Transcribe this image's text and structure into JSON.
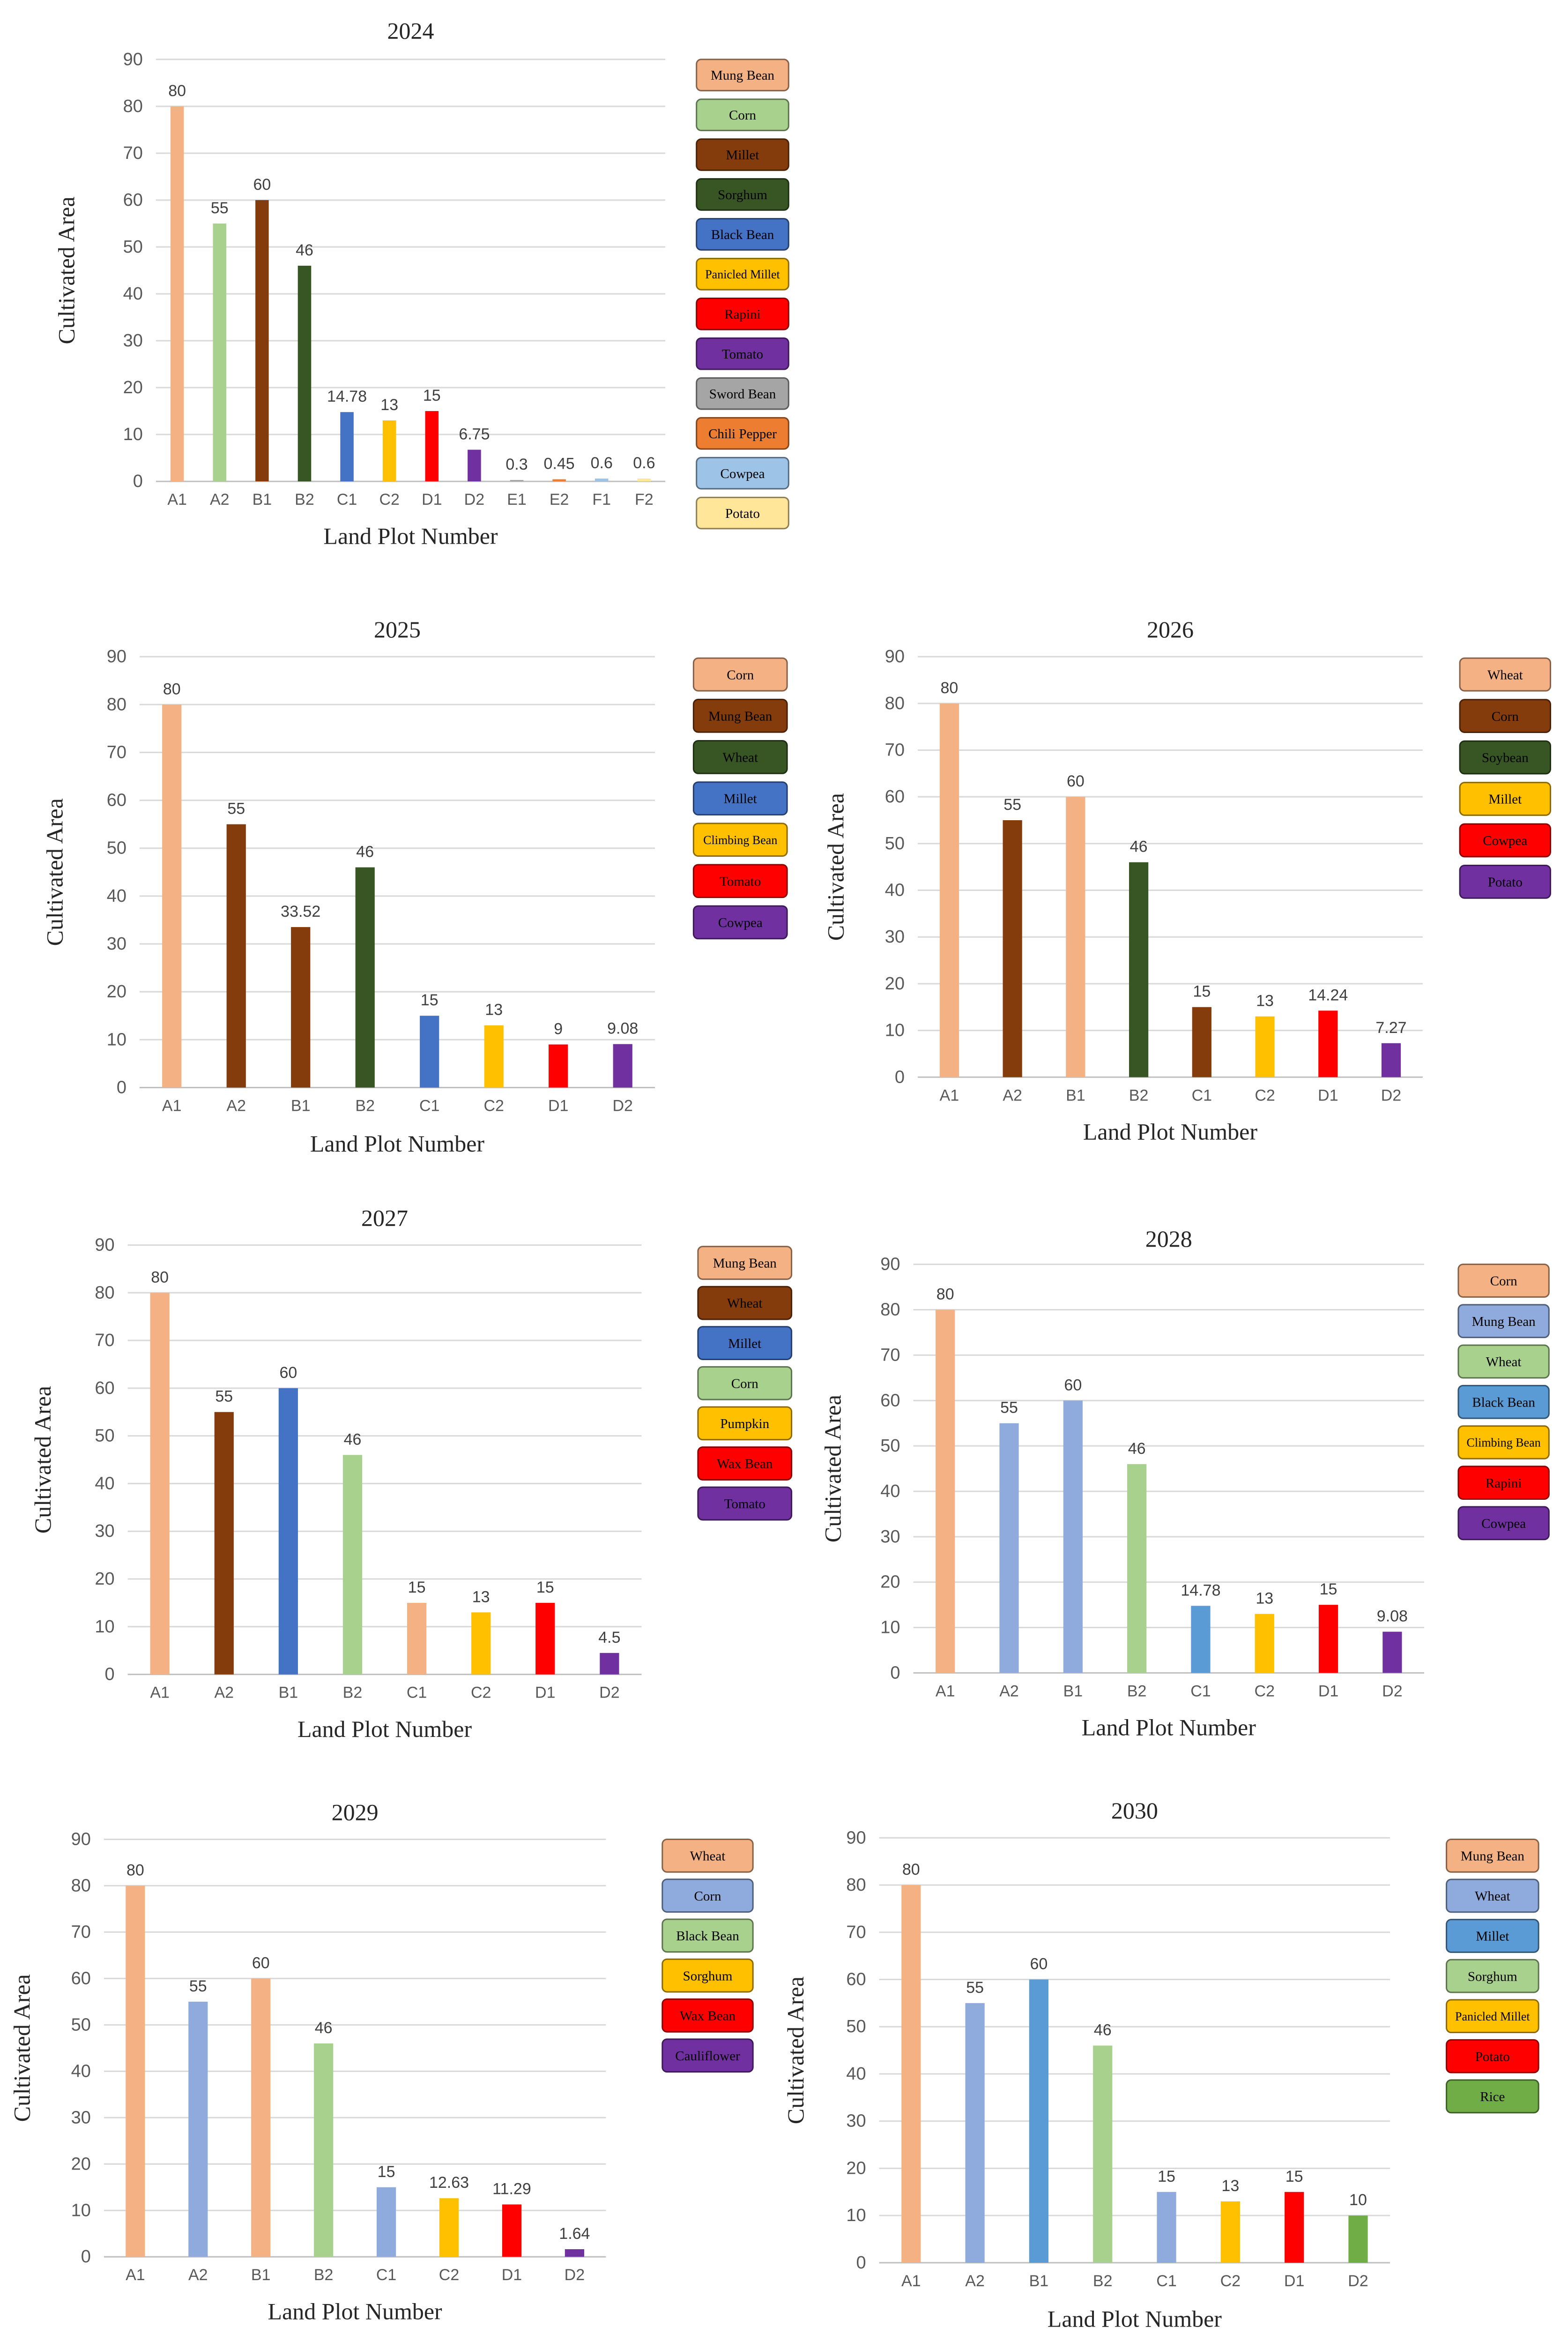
{
  "chart_data": [
    {
      "type": "bar",
      "title": "2024",
      "xlabel": "Land Plot Number",
      "ylabel": "Cultivated Area",
      "ylim": [
        0,
        90
      ],
      "yticks": [
        0,
        10,
        20,
        30,
        40,
        50,
        60,
        70,
        80,
        90
      ],
      "grid": true,
      "legend_position": "right",
      "categories": [
        "A1",
        "A2",
        "B1",
        "B2",
        "C1",
        "C2",
        "D1",
        "D2",
        "E1",
        "E2",
        "F1",
        "F2"
      ],
      "values": [
        80,
        55,
        60,
        46,
        14.78,
        13,
        15,
        6.75,
        0.3,
        0.45,
        0.6,
        0.6
      ],
      "value_labels": [
        "80",
        "55",
        "60",
        "46",
        "14.78",
        "13",
        "15",
        "6.75",
        "0.3",
        "0.45",
        "0.6",
        "0.6"
      ],
      "bar_colors": [
        "#F4B183",
        "#A9D18E",
        "#843C0C",
        "#375623",
        "#4472C4",
        "#FFC000",
        "#FF0000",
        "#7030A0",
        "#A5A5A5",
        "#ED7D31",
        "#9DC3E6",
        "#FFE699"
      ],
      "legend": [
        {
          "label": "Mung Bean",
          "color": "#F4B183"
        },
        {
          "label": "Corn",
          "color": "#A9D18E"
        },
        {
          "label": "Millet",
          "color": "#843C0C"
        },
        {
          "label": "Sorghum",
          "color": "#375623"
        },
        {
          "label": "Black Bean",
          "color": "#4472C4"
        },
        {
          "label": "Panicled Millet",
          "color": "#FFC000"
        },
        {
          "label": "Rapini",
          "color": "#FF0000"
        },
        {
          "label": "Tomato",
          "color": "#7030A0"
        },
        {
          "label": "Sword Bean",
          "color": "#A5A5A5"
        },
        {
          "label": "Chili Pepper",
          "color": "#ED7D31"
        },
        {
          "label": "Cowpea",
          "color": "#9DC3E6"
        },
        {
          "label": "Potato",
          "color": "#FFE699"
        }
      ]
    },
    {
      "type": "bar",
      "title": "2025",
      "xlabel": "Land Plot Number",
      "ylabel": "Cultivated Area",
      "ylim": [
        0,
        90
      ],
      "yticks": [
        0,
        10,
        20,
        30,
        40,
        50,
        60,
        70,
        80,
        90
      ],
      "grid": true,
      "legend_position": "right",
      "categories": [
        "A1",
        "A2",
        "B1",
        "B2",
        "C1",
        "C2",
        "D1",
        "D2"
      ],
      "values": [
        80,
        55,
        33.52,
        46,
        15,
        13,
        9,
        9.08
      ],
      "value_labels": [
        "80",
        "55",
        "33.52",
        "46",
        "15",
        "13",
        "9",
        "9.08"
      ],
      "bar_colors": [
        "#F4B183",
        "#843C0C",
        "#843C0C",
        "#375623",
        "#4472C4",
        "#FFC000",
        "#FF0000",
        "#7030A0"
      ],
      "legend": [
        {
          "label": "Corn",
          "color": "#F4B183"
        },
        {
          "label": "Mung Bean",
          "color": "#843C0C"
        },
        {
          "label": "Wheat",
          "color": "#375623"
        },
        {
          "label": "Millet",
          "color": "#4472C4"
        },
        {
          "label": "Climbing Bean",
          "color": "#FFC000"
        },
        {
          "label": "Tomato",
          "color": "#FF0000"
        },
        {
          "label": "Cowpea",
          "color": "#7030A0"
        }
      ]
    },
    {
      "type": "bar",
      "title": "2026",
      "xlabel": "Land Plot Number",
      "ylabel": "Cultivated Area",
      "ylim": [
        0,
        90
      ],
      "yticks": [
        0,
        10,
        20,
        30,
        40,
        50,
        60,
        70,
        80,
        90
      ],
      "grid": true,
      "legend_position": "right",
      "categories": [
        "A1",
        "A2",
        "B1",
        "B2",
        "C1",
        "C2",
        "D1",
        "D2"
      ],
      "values": [
        80,
        55,
        60,
        46,
        15,
        13,
        14.24,
        7.27
      ],
      "value_labels": [
        "80",
        "55",
        "60",
        "46",
        "15",
        "13",
        "14.24",
        "7.27"
      ],
      "bar_colors": [
        "#F4B183",
        "#843C0C",
        "#F4B183",
        "#375623",
        "#843C0C",
        "#FFC000",
        "#FF0000",
        "#7030A0"
      ],
      "legend": [
        {
          "label": "Wheat",
          "color": "#F4B183"
        },
        {
          "label": "Corn",
          "color": "#843C0C"
        },
        {
          "label": "Soybean",
          "color": "#375623"
        },
        {
          "label": "Millet",
          "color": "#FFC000"
        },
        {
          "label": "Cowpea",
          "color": "#FF0000"
        },
        {
          "label": "Potato",
          "color": "#7030A0"
        }
      ]
    },
    {
      "type": "bar",
      "title": "2027",
      "xlabel": "Land Plot Number",
      "ylabel": "Cultivated Area",
      "ylim": [
        0,
        90
      ],
      "yticks": [
        0,
        10,
        20,
        30,
        40,
        50,
        60,
        70,
        80,
        90
      ],
      "grid": true,
      "legend_position": "right",
      "categories": [
        "A1",
        "A2",
        "B1",
        "B2",
        "C1",
        "C2",
        "D1",
        "D2"
      ],
      "values": [
        80,
        55,
        60,
        46,
        15,
        13,
        15,
        4.5
      ],
      "value_labels": [
        "80",
        "55",
        "60",
        "46",
        "15",
        "13",
        "15",
        "4.5"
      ],
      "bar_colors": [
        "#F4B183",
        "#843C0C",
        "#4472C4",
        "#A9D18E",
        "#F4B183",
        "#FFC000",
        "#FF0000",
        "#7030A0"
      ],
      "legend": [
        {
          "label": "Mung Bean",
          "color": "#F4B183"
        },
        {
          "label": "Wheat",
          "color": "#843C0C"
        },
        {
          "label": "Millet",
          "color": "#4472C4"
        },
        {
          "label": "Corn",
          "color": "#A9D18E"
        },
        {
          "label": "Pumpkin",
          "color": "#FFC000"
        },
        {
          "label": "Wax Bean",
          "color": "#FF0000"
        },
        {
          "label": "Tomato",
          "color": "#7030A0"
        }
      ]
    },
    {
      "type": "bar",
      "title": "2028",
      "xlabel": "Land Plot Number",
      "ylabel": "Cultivated Area",
      "ylim": [
        0,
        90
      ],
      "yticks": [
        0,
        10,
        20,
        30,
        40,
        50,
        60,
        70,
        80,
        90
      ],
      "grid": true,
      "legend_position": "right",
      "categories": [
        "A1",
        "A2",
        "B1",
        "B2",
        "C1",
        "C2",
        "D1",
        "D2"
      ],
      "values": [
        80,
        55,
        60,
        46,
        14.78,
        13,
        15,
        9.08
      ],
      "value_labels": [
        "80",
        "55",
        "60",
        "46",
        "14.78",
        "13",
        "15",
        "9.08"
      ],
      "bar_colors": [
        "#F4B183",
        "#8FAADC",
        "#8FAADC",
        "#A9D18E",
        "#5B9BD5",
        "#FFC000",
        "#FF0000",
        "#7030A0"
      ],
      "legend": [
        {
          "label": "Corn",
          "color": "#F4B183"
        },
        {
          "label": "Mung Bean",
          "color": "#8FAADC"
        },
        {
          "label": "Wheat",
          "color": "#A9D18E"
        },
        {
          "label": "Black Bean",
          "color": "#5B9BD5"
        },
        {
          "label": "Climbing Bean",
          "color": "#FFC000"
        },
        {
          "label": "Rapini",
          "color": "#FF0000"
        },
        {
          "label": "Cowpea",
          "color": "#7030A0"
        }
      ]
    },
    {
      "type": "bar",
      "title": "2029",
      "xlabel": "Land Plot Number",
      "ylabel": "Cultivated Area",
      "ylim": [
        0,
        90
      ],
      "yticks": [
        0,
        10,
        20,
        30,
        40,
        50,
        60,
        70,
        80,
        90
      ],
      "grid": true,
      "legend_position": "right",
      "categories": [
        "A1",
        "A2",
        "B1",
        "B2",
        "C1",
        "C2",
        "D1",
        "D2"
      ],
      "values": [
        80,
        55,
        60,
        46,
        15,
        12.63,
        11.29,
        1.64
      ],
      "value_labels": [
        "80",
        "55",
        "60",
        "46",
        "15",
        "12.63",
        "11.29",
        "1.64"
      ],
      "bar_colors": [
        "#F4B183",
        "#8FAADC",
        "#F4B183",
        "#A9D18E",
        "#8FAADC",
        "#FFC000",
        "#FF0000",
        "#7030A0"
      ],
      "legend": [
        {
          "label": "Wheat",
          "color": "#F4B183"
        },
        {
          "label": "Corn",
          "color": "#8FAADC"
        },
        {
          "label": "Black Bean",
          "color": "#A9D18E"
        },
        {
          "label": "Sorghum",
          "color": "#FFC000"
        },
        {
          "label": "Wax Bean",
          "color": "#FF0000"
        },
        {
          "label": "Cauliflower",
          "color": "#7030A0"
        }
      ]
    },
    {
      "type": "bar",
      "title": "2030",
      "xlabel": "Land Plot Number",
      "ylabel": "Cultivated Area",
      "ylim": [
        0,
        90
      ],
      "yticks": [
        0,
        10,
        20,
        30,
        40,
        50,
        60,
        70,
        80,
        90
      ],
      "grid": true,
      "legend_position": "right",
      "categories": [
        "A1",
        "A2",
        "B1",
        "B2",
        "C1",
        "C2",
        "D1",
        "D2"
      ],
      "values": [
        80,
        55,
        60,
        46,
        15,
        13,
        15,
        10
      ],
      "value_labels": [
        "80",
        "55",
        "60",
        "46",
        "15",
        "13",
        "15",
        "10"
      ],
      "bar_colors": [
        "#F4B183",
        "#8FAADC",
        "#5B9BD5",
        "#A9D18E",
        "#8FAADC",
        "#FFC000",
        "#FF0000",
        "#70AD47"
      ],
      "legend": [
        {
          "label": "Mung Bean",
          "color": "#F4B183"
        },
        {
          "label": "Wheat",
          "color": "#8FAADC"
        },
        {
          "label": "Millet",
          "color": "#5B9BD5"
        },
        {
          "label": "Sorghum",
          "color": "#A9D18E"
        },
        {
          "label": "Panicled Millet",
          "color": "#FFC000"
        },
        {
          "label": "Potato",
          "color": "#FF0000"
        },
        {
          "label": "Rice",
          "color": "#70AD47"
        }
      ]
    }
  ]
}
